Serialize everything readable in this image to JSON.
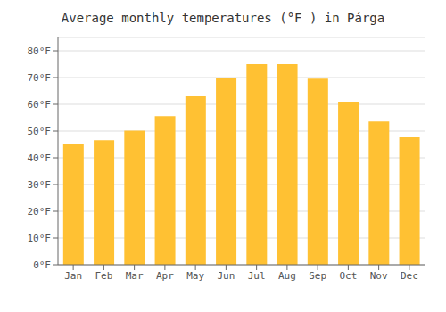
{
  "chart_data": {
    "type": "bar",
    "title": "Average monthly temperatures (°F ) in Párga",
    "categories": [
      "Jan",
      "Feb",
      "Mar",
      "Apr",
      "May",
      "Jun",
      "Jul",
      "Aug",
      "Sep",
      "Oct",
      "Nov",
      "Dec"
    ],
    "values": [
      45.1,
      46.6,
      50.2,
      55.6,
      63.0,
      70.0,
      75.0,
      75.0,
      69.6,
      61.0,
      53.6,
      47.7
    ],
    "color": "#FFC133",
    "ylim": [
      0,
      85
    ],
    "yticks": [
      {
        "value": 0,
        "label": "0°F"
      },
      {
        "value": 10,
        "label": "10°F"
      },
      {
        "value": 20,
        "label": "20°F"
      },
      {
        "value": 30,
        "label": "30°F"
      },
      {
        "value": 40,
        "label": "40°F"
      },
      {
        "value": 50,
        "label": "50°F"
      },
      {
        "value": 60,
        "label": "60°F"
      },
      {
        "value": 70,
        "label": "70°F"
      },
      {
        "value": 80,
        "label": "80°F"
      }
    ],
    "grid": true
  }
}
